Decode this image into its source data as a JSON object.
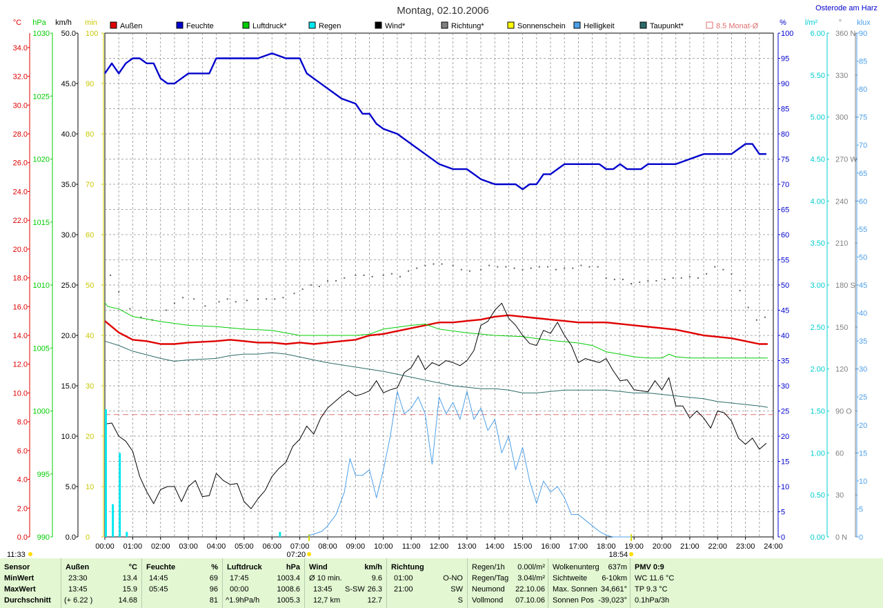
{
  "header": {
    "title": "Montag, 02.10.2006",
    "location": "Osterode am Harz"
  },
  "legend": [
    {
      "label": "Außen",
      "color": "#e00000"
    },
    {
      "label": "Feuchte",
      "color": "#0000cc"
    },
    {
      "label": "Luftdruck*",
      "color": "#00cc00"
    },
    {
      "label": "Regen",
      "color": "#00e8f0"
    },
    {
      "label": "Wind*",
      "color": "#000000"
    },
    {
      "label": "Richtung*",
      "color": "#808080"
    },
    {
      "label": "Sonnenschein",
      "color": "#ffff00"
    },
    {
      "label": "Helligkeit",
      "color": "#4c9fe8"
    },
    {
      "label": "Taupunkt*",
      "color": "#2a6a6a"
    },
    {
      "label": "8.5 Monat-Ø",
      "color": "#e07070"
    }
  ],
  "axes": {
    "temp": {
      "unit": "°C",
      "color": "#e00000",
      "ticks": [
        "0.0",
        "2.0",
        "4.0",
        "6.0",
        "8.0",
        "10.0",
        "12.0",
        "14.0",
        "16.0",
        "18.0",
        "20.0",
        "22.0",
        "24.0",
        "26.0",
        "28.0",
        "30.0",
        "32.0",
        "34.0"
      ]
    },
    "pressure": {
      "unit": "hPa",
      "color": "#00cc00",
      "ticks": [
        "990",
        "995",
        "1000",
        "1005",
        "1010",
        "1015",
        "1020",
        "1025",
        "1030"
      ]
    },
    "wind": {
      "unit": "km/h",
      "color": "#000000",
      "ticks": [
        "0.0",
        "5.0",
        "10.0",
        "15.0",
        "20.0",
        "25.0",
        "30.0",
        "35.0",
        "40.0",
        "45.0",
        "50.0"
      ]
    },
    "sun": {
      "unit": "min",
      "color": "#ffff00",
      "ticks": [
        "0",
        "10",
        "20",
        "30",
        "40",
        "50",
        "60",
        "70",
        "80",
        "90",
        "100"
      ]
    },
    "humidity": {
      "unit": "%",
      "color": "#0000cc",
      "ticks": [
        "0",
        "5",
        "10",
        "15",
        "20",
        "25",
        "30",
        "35",
        "40",
        "45",
        "50",
        "55",
        "60",
        "65",
        "70",
        "75",
        "80",
        "85",
        "90",
        "95",
        "100"
      ]
    },
    "rain": {
      "unit": "l/m²",
      "color": "#00cccc",
      "ticks": [
        "0.00",
        "0.50",
        "1.00",
        "1.50",
        "2.00",
        "2.50",
        "3.00",
        "3.50",
        "4.00",
        "4.50",
        "5.00",
        "5.50",
        "6.00"
      ]
    },
    "direction": {
      "unit": "°",
      "color": "#808080",
      "ticks": [
        "0 N",
        "30",
        "60",
        "90 O",
        "120",
        "150",
        "180 S",
        "210",
        "240",
        "270 W",
        "300",
        "330",
        "360 N"
      ]
    },
    "light": {
      "unit": "klux",
      "color": "#4c9fe8",
      "ticks": [
        "0",
        "5",
        "10",
        "15",
        "20",
        "25",
        "30",
        "35",
        "40",
        "45",
        "50",
        "55",
        "60",
        "65",
        "70",
        "75",
        "80",
        "85",
        "90"
      ]
    },
    "time": {
      "ticks": [
        "00:00",
        "01:00",
        "02:00",
        "03:00",
        "04:00",
        "05:00",
        "06:00",
        "07:00",
        "08:00",
        "09:00",
        "10:00",
        "11:00",
        "12:00",
        "13:00",
        "14:00",
        "15:00",
        "16:00",
        "17:00",
        "18:00",
        "19:00",
        "20:00",
        "21:00",
        "22:00",
        "23:00",
        "24:00"
      ]
    }
  },
  "sun_times": {
    "sunrise": "07:20",
    "sunset": "18:54",
    "daylength": "11:33"
  },
  "chart_data": {
    "type": "line",
    "x_unit": "hours",
    "monthly_avg_temp": 8.5,
    "series": [
      {
        "name": "Außen",
        "axis": "temp",
        "x": [
          0,
          0.5,
          1,
          1.5,
          2,
          2.5,
          3,
          4,
          4.5,
          5,
          5.5,
          6,
          6.5,
          7,
          7.5,
          8,
          8.5,
          9,
          9.5,
          10,
          10.5,
          11,
          11.5,
          12,
          12.5,
          13,
          13.5,
          14,
          14.5,
          15,
          15.5,
          16,
          16.5,
          17,
          17.5,
          18,
          18.5,
          19,
          19.5,
          20,
          20.5,
          21,
          21.5,
          22,
          22.5,
          23,
          23.5,
          23.8
        ],
        "y": [
          15.0,
          14.2,
          13.7,
          13.6,
          13.4,
          13.4,
          13.5,
          13.6,
          13.7,
          13.6,
          13.5,
          13.5,
          13.4,
          13.5,
          13.4,
          13.5,
          13.6,
          13.7,
          14.0,
          14.1,
          14.3,
          14.5,
          14.7,
          14.9,
          14.9,
          15.0,
          15.1,
          15.3,
          15.4,
          15.3,
          15.2,
          15.1,
          15.0,
          14.9,
          14.9,
          14.9,
          14.8,
          14.7,
          14.6,
          14.5,
          14.4,
          14.2,
          14.0,
          13.9,
          13.8,
          13.6,
          13.4,
          13.4
        ]
      },
      {
        "name": "Feuchte",
        "axis": "humidity",
        "x": [
          0,
          0.25,
          0.5,
          0.75,
          1,
          1.25,
          1.5,
          1.75,
          2,
          2.25,
          2.5,
          2.75,
          3,
          3.5,
          3.75,
          4,
          4.5,
          5,
          5.5,
          6,
          6.5,
          7,
          7.25,
          7.5,
          8,
          8.25,
          8.5,
          9,
          9.25,
          9.5,
          9.75,
          10,
          10.5,
          11,
          11.5,
          12,
          12.5,
          13,
          13.25,
          13.5,
          14,
          14.5,
          14.75,
          15,
          15.25,
          15.5,
          15.75,
          16,
          16.25,
          16.5,
          17,
          17.5,
          17.75,
          18,
          18.25,
          18.5,
          18.75,
          19,
          19.25,
          19.5,
          20,
          20.5,
          21,
          21.5,
          22,
          22.5,
          22.75,
          23,
          23.25,
          23.5,
          23.75
        ],
        "y": [
          92,
          94,
          92,
          94,
          95,
          95,
          94,
          94,
          91,
          90,
          90,
          91,
          92,
          92,
          92,
          95,
          95,
          95,
          95,
          96,
          95,
          95,
          92,
          91,
          89,
          88,
          87,
          86,
          84,
          84,
          82,
          81,
          80,
          78,
          76,
          74,
          73,
          73,
          72,
          71,
          70,
          70,
          70,
          69,
          70,
          70,
          72,
          72,
          73,
          74,
          74,
          74,
          74,
          73,
          73,
          74,
          73,
          73,
          73,
          74,
          74,
          74,
          75,
          76,
          76,
          76,
          77,
          78,
          78,
          76,
          76
        ]
      },
      {
        "name": "Luftdruck*",
        "axis": "pressure",
        "x": [
          0,
          0.1,
          0.5,
          1,
          2,
          3,
          4,
          5,
          6,
          7,
          8,
          9,
          9.5,
          10,
          11,
          11.5,
          12,
          13,
          14,
          15,
          16,
          17,
          17.5,
          18,
          19,
          19.5,
          20,
          20.25,
          20.5,
          21,
          22,
          23,
          23.8
        ],
        "y": [
          1008.6,
          1008.3,
          1008.1,
          1007.5,
          1007.1,
          1006.8,
          1006.7,
          1006.5,
          1006.4,
          1006.0,
          1006.0,
          1006.0,
          1006.1,
          1006.5,
          1006.8,
          1006.9,
          1006.5,
          1006.2,
          1006.0,
          1005.9,
          1005.6,
          1005.4,
          1005.2,
          1004.7,
          1004.3,
          1004.2,
          1004.2,
          1004.5,
          1004.3,
          1004.2,
          1004.2,
          1004.2,
          1004.2
        ]
      },
      {
        "name": "Wind*",
        "axis": "wind",
        "x": [
          0,
          0.25,
          0.5,
          0.75,
          1,
          1.25,
          1.5,
          1.75,
          2,
          2.25,
          2.5,
          2.75,
          3,
          3.25,
          3.5,
          3.75,
          4,
          4.25,
          4.5,
          4.75,
          5,
          5.25,
          5.5,
          5.75,
          6,
          6.25,
          6.5,
          6.75,
          7,
          7.25,
          7.5,
          7.75,
          8,
          8.25,
          8.5,
          8.75,
          9,
          9.25,
          9.5,
          9.75,
          10,
          10.25,
          10.5,
          10.75,
          11,
          11.25,
          11.5,
          11.75,
          12,
          12.25,
          12.5,
          12.75,
          13,
          13.25,
          13.5,
          13.75,
          14,
          14.25,
          14.5,
          14.75,
          15,
          15.25,
          15.5,
          15.75,
          16,
          16.25,
          16.5,
          16.75,
          17,
          17.25,
          17.5,
          17.75,
          18,
          18.25,
          18.5,
          18.75,
          19,
          19.25,
          19.5,
          19.75,
          20,
          20.25,
          20.5,
          20.75,
          21,
          21.25,
          21.5,
          21.75,
          22,
          22.25,
          22.5,
          22.75,
          23,
          23.25,
          23.5,
          23.75
        ],
        "y": [
          11.2,
          11.3,
          10.0,
          9.5,
          8.5,
          6.0,
          4.5,
          3.3,
          4.7,
          5.0,
          5.0,
          3.5,
          5.0,
          5.6,
          4.0,
          4.1,
          6.3,
          5.6,
          5.2,
          5.3,
          3.5,
          2.8,
          3.8,
          4.6,
          6.0,
          6.8,
          7.4,
          9.0,
          9.7,
          11.0,
          10.2,
          11.8,
          12.8,
          13.4,
          14.0,
          14.5,
          14.0,
          14.2,
          14.5,
          15.5,
          14.3,
          14.6,
          14.8,
          16.3,
          16.8,
          18.0,
          16.6,
          17.3,
          17.0,
          17.5,
          17.3,
          17.0,
          17.5,
          18.5,
          21.0,
          21.4,
          22.5,
          23.2,
          21.7,
          21.0,
          20.0,
          19.2,
          19.0,
          20.5,
          20.2,
          21.3,
          20.0,
          19.0,
          17.3,
          17.7,
          17.5,
          17.3,
          17.7,
          16.5,
          15.5,
          15.6,
          14.6,
          14.5,
          14.4,
          15.5,
          14.6,
          15.8,
          13.0,
          13.0,
          11.8,
          12.5,
          11.8,
          10.8,
          12.5,
          12.3,
          11.5,
          9.8,
          9.2,
          9.8,
          8.7,
          9.3
        ]
      },
      {
        "name": "Richtung*",
        "axis": "direction",
        "x": [
          0.2,
          0.5,
          0.9,
          1.3,
          1.7,
          2.2,
          2.5,
          2.8,
          3.2,
          3.6,
          4.1,
          4.4,
          4.7,
          5.1,
          5.5,
          5.8,
          6.1,
          6.4,
          6.8,
          7.1,
          7.4,
          7.7,
          8.0,
          8.3,
          8.6,
          9.0,
          9.3,
          9.6,
          10.0,
          10.3,
          10.6,
          10.9,
          11.2,
          11.5,
          11.8,
          12.1,
          12.5,
          12.8,
          13.1,
          13.5,
          13.8,
          14.1,
          14.4,
          14.7,
          15.0,
          15.3,
          15.6,
          15.9,
          16.2,
          16.5,
          16.8,
          17.1,
          17.4,
          17.7,
          18.0,
          18.3,
          18.6,
          18.9,
          19.2,
          19.5,
          19.8,
          20.1,
          20.4,
          20.7,
          21.0,
          21.3,
          21.6,
          21.9,
          22.2,
          22.5,
          22.8,
          23.1,
          23.4,
          23.7
        ],
        "y": [
          187,
          175,
          163,
          157,
          155,
          162,
          167,
          171,
          170,
          165,
          168,
          170,
          168,
          169,
          170,
          170,
          170,
          171,
          174,
          177,
          180,
          179,
          183,
          183,
          185,
          187,
          187,
          186,
          187,
          188,
          186,
          190,
          192,
          194,
          195,
          195,
          194,
          191,
          190,
          191,
          194,
          193,
          193,
          192,
          191,
          192,
          193,
          193,
          191,
          192,
          192,
          194,
          193,
          193,
          185,
          184,
          184,
          181,
          182,
          183,
          183,
          184,
          185,
          185,
          186,
          185,
          188,
          193,
          191,
          188,
          176,
          164,
          155,
          157
        ]
      },
      {
        "name": "Helligkeit",
        "axis": "light",
        "x": [
          7.3,
          7.5,
          7.8,
          8.0,
          8.3,
          8.6,
          8.8,
          9.0,
          9.25,
          9.5,
          9.75,
          10,
          10.25,
          10.5,
          10.75,
          11,
          11.25,
          11.5,
          11.75,
          12,
          12.25,
          12.5,
          12.75,
          13,
          13.25,
          13.5,
          13.75,
          14,
          14.25,
          14.5,
          14.75,
          15,
          15.25,
          15.5,
          15.75,
          16,
          16.25,
          16.5,
          16.75,
          17,
          17.25,
          17.5,
          17.75,
          18,
          18.25,
          18.5,
          18.75,
          18.9
        ],
        "y": [
          0.2,
          0.5,
          1,
          2,
          4,
          8,
          14,
          11,
          11,
          12,
          7,
          12,
          18,
          26,
          22,
          23,
          25,
          22,
          13,
          25,
          22,
          24,
          21,
          26,
          21,
          23,
          19,
          21,
          15,
          18,
          12,
          16,
          10,
          6,
          10,
          8,
          9,
          7,
          4,
          4,
          3,
          2,
          1,
          0.3,
          0,
          0,
          0,
          0
        ]
      },
      {
        "name": "Taupunkt*",
        "axis": "temp",
        "x": [
          0,
          0.5,
          1,
          2,
          2.5,
          3,
          4,
          4.5,
          5,
          5.5,
          6,
          6.5,
          7,
          7.5,
          8,
          9,
          10,
          11,
          11.5,
          12,
          12.5,
          13,
          13.5,
          14,
          14.5,
          15,
          15.5,
          16,
          16.5,
          17,
          17.5,
          18,
          18.5,
          19,
          19.5,
          20,
          20.5,
          21,
          21.5,
          22,
          22.5,
          23,
          23.5,
          23.8
        ],
        "y": [
          13.6,
          13.3,
          12.9,
          12.4,
          12.2,
          12.3,
          12.4,
          12.6,
          12.7,
          12.7,
          12.8,
          12.7,
          12.5,
          12.3,
          12.1,
          11.8,
          11.5,
          11.1,
          10.9,
          10.7,
          10.5,
          10.4,
          10.3,
          10.3,
          10.2,
          10.0,
          10.0,
          10.1,
          10.2,
          10.2,
          10.2,
          10.2,
          10.1,
          10.0,
          10.0,
          9.9,
          9.8,
          9.7,
          9.6,
          9.4,
          9.3,
          9.2,
          9.1,
          9.0
        ]
      },
      {
        "name": "Regen",
        "axis": "rain",
        "type": "bar",
        "x": [
          0.0,
          0.25,
          0.5,
          0.75,
          6.25
        ],
        "y": [
          1.52,
          0.39,
          1.0,
          0.06,
          0.06
        ]
      }
    ]
  },
  "stats": {
    "sensor": {
      "title": "Sensor",
      "rows": [
        "MinWert",
        "MaxWert",
        "Durchschnitt"
      ]
    },
    "aussen": {
      "title": "Außen",
      "unit": "°C",
      "rows": [
        [
          "23:30",
          "13.4"
        ],
        [
          "13:45",
          "15.9"
        ],
        [
          "(+ 6.22 )",
          "14.68"
        ]
      ]
    },
    "feuchte": {
      "title": "Feuchte",
      "unit": "%",
      "rows": [
        [
          "14:45",
          "69"
        ],
        [
          "05:45",
          "96"
        ],
        [
          "",
          "81"
        ]
      ]
    },
    "luftdruck": {
      "title": "Luftdruck",
      "unit": "hPa",
      "rows": [
        [
          "17:45",
          "1003.4"
        ],
        [
          "00:00",
          "1008.6"
        ],
        [
          "^1.9hPa/h",
          "1005.3"
        ]
      ]
    },
    "wind": {
      "title": "Wind",
      "unit": "km/h",
      "rows": [
        [
          "Ø 10 min.",
          "",
          "9.6"
        ],
        [
          "13:45",
          "S-SW",
          "26.3"
        ],
        [
          "12,7 km",
          "",
          "12.7"
        ]
      ]
    },
    "richtung": {
      "title": "Richtung",
      "rows": [
        [
          "01:00",
          "O-NO"
        ],
        [
          "21:00",
          "SW"
        ],
        [
          "",
          "S"
        ]
      ]
    },
    "regen": {
      "rows": [
        [
          "Regen/1h",
          "0.00l/m²"
        ],
        [
          "Regen/Tag",
          "3.04l/m²"
        ],
        [
          "Neumond",
          "22.10.06"
        ],
        [
          "Vollmond",
          "07.10.06"
        ]
      ]
    },
    "wolken": {
      "rows": [
        [
          "Wolkenunterg",
          "637m"
        ],
        [
          "Sichtweite",
          "6-10km"
        ],
        [
          "Max. Sonnen",
          "34,661°"
        ],
        [
          "Sonnen Pos",
          "-39,023°"
        ]
      ]
    },
    "pmv": {
      "rows": [
        "PMV 0:9",
        "WC 11.6 °C",
        "TP 9.3 °C",
        "0.1hPa/3h"
      ]
    }
  }
}
